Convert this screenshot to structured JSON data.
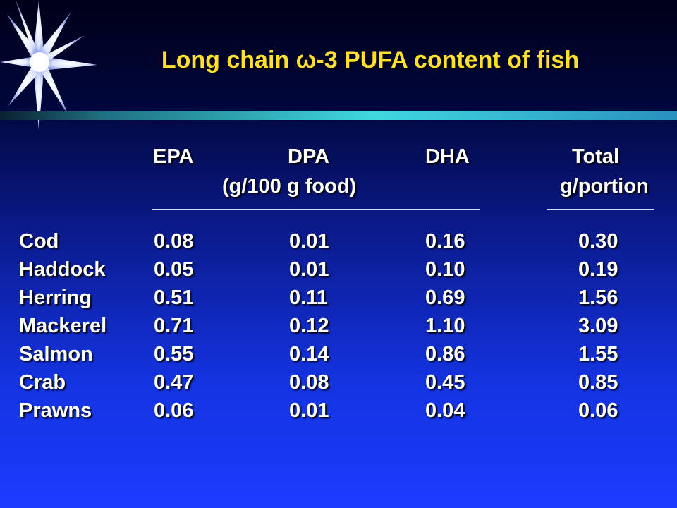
{
  "title": {
    "prefix": "Long chain ",
    "symbol": "ω",
    "suffix": "-3 PUFA content of fish"
  },
  "table": {
    "columns": [
      "EPA",
      "DPA",
      "DHA",
      "Total"
    ],
    "unit_left": "(g/100 g food)",
    "unit_right": "g/portion",
    "rows": [
      {
        "name": "Cod",
        "values": [
          "0.08",
          "0.01",
          "0.16",
          "0.30"
        ]
      },
      {
        "name": "Haddock",
        "values": [
          "0.05",
          "0.01",
          "0.10",
          "0.19"
        ]
      },
      {
        "name": "Herring",
        "values": [
          "0.51",
          "0.11",
          "0.69",
          "1.56"
        ]
      },
      {
        "name": "Mackerel",
        "values": [
          "0.71",
          "0.12",
          "1.10",
          "3.09"
        ]
      },
      {
        "name": "Salmon",
        "values": [
          "0.55",
          "0.14",
          "0.86",
          "1.55"
        ]
      },
      {
        "name": "Crab",
        "values": [
          "0.47",
          "0.08",
          "0.45",
          "0.85"
        ]
      },
      {
        "name": "Prawns",
        "values": [
          "0.06",
          "0.01",
          "0.04",
          "0.06"
        ]
      }
    ]
  },
  "colors": {
    "title": "#ffe030",
    "text": "#ffffff",
    "bar_start": "#1a6a7a",
    "bar_mid": "#40d8e0"
  }
}
